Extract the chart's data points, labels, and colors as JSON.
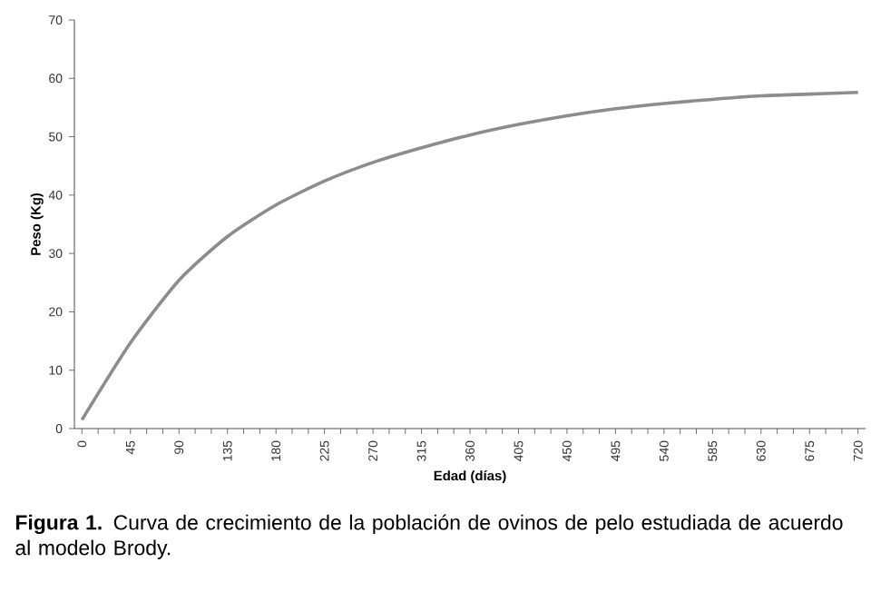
{
  "chart_data": {
    "type": "line",
    "xlabel": "Edad (días)",
    "ylabel": "Peso (Kg)",
    "x": [
      0,
      45,
      90,
      135,
      180,
      225,
      270,
      315,
      360,
      405,
      450,
      495,
      540,
      585,
      630,
      675,
      720
    ],
    "series": [
      {
        "color": "#8c8c8c",
        "values": [
          1.5,
          14.7,
          25.4,
          32.9,
          38.3,
          42.4,
          45.6,
          48.1,
          50.3,
          52.1,
          53.6,
          54.8,
          55.7,
          56.4,
          57.0,
          57.3,
          57.6
        ]
      }
    ],
    "xlim": [
      -7,
      727
    ],
    "ylim": [
      0,
      70
    ],
    "xticks": [
      0,
      45,
      90,
      135,
      180,
      225,
      270,
      315,
      360,
      405,
      450,
      495,
      540,
      585,
      630,
      675,
      720
    ],
    "yticks": [
      0,
      10,
      20,
      30,
      40,
      50,
      60,
      70
    ],
    "marker": "none",
    "line_style": "solid",
    "annotations": [
      "**Figura 1.** Curva de crecimiento de la población de ovinos de pelo estudiada de acuerdo al modelo Brody."
    ]
  }
}
